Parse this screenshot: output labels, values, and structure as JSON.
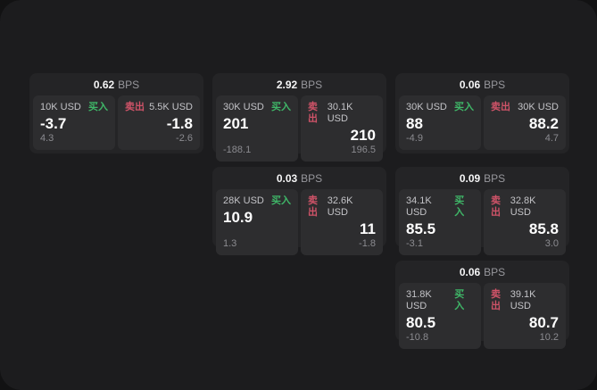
{
  "labels": {
    "bps_unit": "BPS",
    "buy": "买入",
    "sell": "卖出"
  },
  "colors": {
    "page_bg": "#1c1c1e",
    "card_bg": "#242426",
    "panel_bg": "#2d2d2f",
    "buy_green": "#3fb768",
    "sell_red": "#cf5368"
  },
  "cards": [
    {
      "spread": "0.62",
      "buy": {
        "amount": "10K USD",
        "price": "-3.7",
        "sub": "4.3"
      },
      "sell": {
        "amount": "5.5K USD",
        "price": "-1.8",
        "sub": "-2.6"
      }
    },
    {
      "spread": "2.92",
      "buy": {
        "amount": "30K USD",
        "price": "201",
        "sub": "-188.1"
      },
      "sell": {
        "amount": "30.1K USD",
        "price": "210",
        "sub": "196.5"
      }
    },
    {
      "spread": "0.06",
      "buy": {
        "amount": "30K USD",
        "price": "88",
        "sub": "-4.9"
      },
      "sell": {
        "amount": "30K USD",
        "price": "88.2",
        "sub": "4.7"
      }
    },
    {
      "spread": "0.03",
      "buy": {
        "amount": "28K USD",
        "price": "10.9",
        "sub": "1.3"
      },
      "sell": {
        "amount": "32.6K USD",
        "price": "11",
        "sub": "-1.8"
      }
    },
    {
      "spread": "0.09",
      "buy": {
        "amount": "34.1K USD",
        "price": "85.5",
        "sub": "-3.1"
      },
      "sell": {
        "amount": "32.8K USD",
        "price": "85.8",
        "sub": "3.0"
      }
    },
    {
      "spread": "0.06",
      "buy": {
        "amount": "31.8K USD",
        "price": "80.5",
        "sub": "-10.8"
      },
      "sell": {
        "amount": "39.1K USD",
        "price": "80.7",
        "sub": "10.2"
      }
    }
  ]
}
